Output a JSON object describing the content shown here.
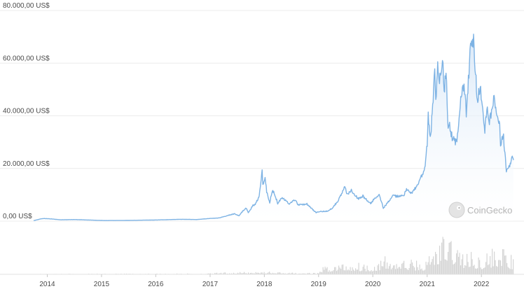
{
  "chart_data": {
    "type": "area",
    "y_axis": {
      "range": [
        0,
        80000
      ],
      "ticks": [
        {
          "value": 0,
          "label": "0,00 US$"
        },
        {
          "value": 20000,
          "label": "20.000,00 US$"
        },
        {
          "value": 40000,
          "label": "40.000,00 US$"
        },
        {
          "value": 60000,
          "label": "60.000,00 US$"
        },
        {
          "value": 80000,
          "label": "80.000,00 US$"
        }
      ]
    },
    "x_axis": {
      "range": [
        "2013-10-01",
        "2022-08-05"
      ],
      "ticks": [
        {
          "value": "2014-01-01",
          "label": "2014"
        },
        {
          "value": "2015-01-01",
          "label": "2015"
        },
        {
          "value": "2016-01-01",
          "label": "2016"
        },
        {
          "value": "2017-01-01",
          "label": "2017"
        },
        {
          "value": "2018-01-01",
          "label": "2018"
        },
        {
          "value": "2019-01-01",
          "label": "2019"
        },
        {
          "value": "2020-01-01",
          "label": "2020"
        },
        {
          "value": "2021-01-01",
          "label": "2021"
        },
        {
          "value": "2022-01-01",
          "label": "2022"
        }
      ]
    },
    "grid": "horizontal",
    "series": [
      {
        "color": "#7eb3e4",
        "fill_color": "#e7f0fa",
        "points": [
          [
            "2013-10-01",
            200
          ],
          [
            "2013-12-01",
            1000
          ],
          [
            "2014-01-15",
            900
          ],
          [
            "2014-04-01",
            500
          ],
          [
            "2014-07-01",
            600
          ],
          [
            "2014-11-01",
            380
          ],
          [
            "2015-01-15",
            220
          ],
          [
            "2015-06-01",
            240
          ],
          [
            "2015-11-05",
            380
          ],
          [
            "2016-01-01",
            430
          ],
          [
            "2016-06-15",
            700
          ],
          [
            "2016-10-01",
            610
          ],
          [
            "2017-01-01",
            1000
          ],
          [
            "2017-03-01",
            1200
          ],
          [
            "2017-05-25",
            2500
          ],
          [
            "2017-06-15",
            2800
          ],
          [
            "2017-07-15",
            2000
          ],
          [
            "2017-08-15",
            4300
          ],
          [
            "2017-09-01",
            4800
          ],
          [
            "2017-09-15",
            3300
          ],
          [
            "2017-10-15",
            5800
          ],
          [
            "2017-11-01",
            6500
          ],
          [
            "2017-11-15",
            8000
          ],
          [
            "2017-11-28",
            10000
          ],
          [
            "2017-12-08",
            15000
          ],
          [
            "2017-12-17",
            19300
          ],
          [
            "2017-12-22",
            14000
          ],
          [
            "2018-01-06",
            17000
          ],
          [
            "2018-01-17",
            11000
          ],
          [
            "2018-02-06",
            6900
          ],
          [
            "2018-02-20",
            11000
          ],
          [
            "2018-03-05",
            11500
          ],
          [
            "2018-04-01",
            6800
          ],
          [
            "2018-05-01",
            9200
          ],
          [
            "2018-06-15",
            6500
          ],
          [
            "2018-07-25",
            8200
          ],
          [
            "2018-08-15",
            6300
          ],
          [
            "2018-10-15",
            6500
          ],
          [
            "2018-11-20",
            4500
          ],
          [
            "2018-12-15",
            3300
          ],
          [
            "2019-01-15",
            3600
          ],
          [
            "2019-03-01",
            3800
          ],
          [
            "2019-04-02",
            4900
          ],
          [
            "2019-05-15",
            8000
          ],
          [
            "2019-06-26",
            12900
          ],
          [
            "2019-07-15",
            10000
          ],
          [
            "2019-08-10",
            11800
          ],
          [
            "2019-09-24",
            8500
          ],
          [
            "2019-10-26",
            9500
          ],
          [
            "2019-12-17",
            6600
          ],
          [
            "2020-01-15",
            8700
          ],
          [
            "2020-02-13",
            10300
          ],
          [
            "2020-03-12",
            5000
          ],
          [
            "2020-04-10",
            6900
          ],
          [
            "2020-05-10",
            9500
          ],
          [
            "2020-06-15",
            9400
          ],
          [
            "2020-07-25",
            9700
          ],
          [
            "2020-08-15",
            11800
          ],
          [
            "2020-09-15",
            10700
          ],
          [
            "2020-10-21",
            12800
          ],
          [
            "2020-11-15",
            16000
          ],
          [
            "2020-12-15",
            19400
          ],
          [
            "2021-01-01",
            29000
          ],
          [
            "2021-01-08",
            40000
          ],
          [
            "2021-01-22",
            31000
          ],
          [
            "2021-02-10",
            45000
          ],
          [
            "2021-02-21",
            57000
          ],
          [
            "2021-02-28",
            45000
          ],
          [
            "2021-03-13",
            61000
          ],
          [
            "2021-03-25",
            52000
          ],
          [
            "2021-04-14",
            63500
          ],
          [
            "2021-04-25",
            49000
          ],
          [
            "2021-05-08",
            58000
          ],
          [
            "2021-05-19",
            37000
          ],
          [
            "2021-06-01",
            36000
          ],
          [
            "2021-06-22",
            31000
          ],
          [
            "2021-07-20",
            29800
          ],
          [
            "2021-08-15",
            47000
          ],
          [
            "2021-09-06",
            52000
          ],
          [
            "2021-09-21",
            41000
          ],
          [
            "2021-10-20",
            66000
          ],
          [
            "2021-11-09",
            68000
          ],
          [
            "2021-11-26",
            54000
          ],
          [
            "2021-12-04",
            46000
          ],
          [
            "2021-12-27",
            51000
          ],
          [
            "2022-01-10",
            41500
          ],
          [
            "2022-01-24",
            35000
          ],
          [
            "2022-02-10",
            44000
          ],
          [
            "2022-02-24",
            37000
          ],
          [
            "2022-03-28",
            47400
          ],
          [
            "2022-04-15",
            40000
          ],
          [
            "2022-05-01",
            38000
          ],
          [
            "2022-05-10",
            30000
          ],
          [
            "2022-05-30",
            31700
          ],
          [
            "2022-06-18",
            19000
          ],
          [
            "2022-07-01",
            19500
          ],
          [
            "2022-07-20",
            23500
          ],
          [
            "2022-07-28",
            23800
          ],
          [
            "2022-08-05",
            23200
          ]
        ]
      }
    ],
    "volume": {
      "color": "#d4d4d4",
      "range": [
        0,
        100
      ],
      "points": [
        [
          "2013-10-01",
          1
        ],
        [
          "2016-12-31",
          2
        ],
        [
          "2017-01-01",
          3
        ],
        [
          "2017-12-20",
          7
        ],
        [
          "2018-06-01",
          4
        ],
        [
          "2018-12-31",
          3
        ],
        [
          "2019-01-01",
          15
        ],
        [
          "2019-06-26",
          30
        ],
        [
          "2019-12-31",
          25
        ],
        [
          "2020-03-12",
          40
        ],
        [
          "2020-12-31",
          30
        ],
        [
          "2021-01-10",
          60
        ],
        [
          "2021-05-19",
          100
        ],
        [
          "2021-09-01",
          55
        ],
        [
          "2021-12-31",
          45
        ],
        [
          "2022-05-10",
          70
        ],
        [
          "2022-08-05",
          35
        ]
      ]
    }
  },
  "watermark": {
    "text": "CoinGecko",
    "icon": "gecko-logo-icon"
  }
}
